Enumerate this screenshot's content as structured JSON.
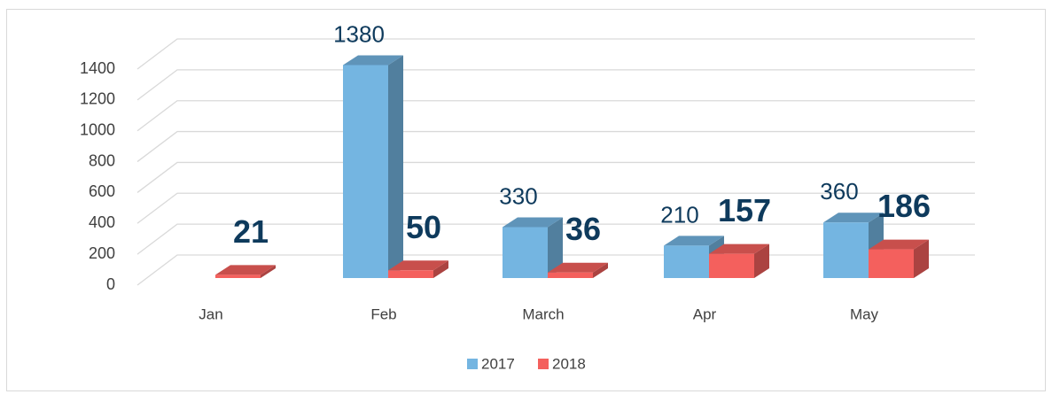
{
  "chart_data": {
    "type": "bar3d",
    "categories": [
      "Jan",
      "Feb",
      "March",
      "Apr",
      "May"
    ],
    "series": [
      {
        "name": "2017",
        "color": "#74b5e1",
        "values": [
          null,
          1380,
          330,
          210,
          360
        ]
      },
      {
        "name": "2018",
        "color": "#f4605d",
        "values": [
          21,
          50,
          36,
          157,
          186
        ]
      }
    ],
    "ylim": [
      0,
      1400
    ],
    "yticks": [
      0,
      200,
      400,
      600,
      800,
      1000,
      1200,
      1400
    ],
    "grid": true,
    "legend": "bottom"
  }
}
